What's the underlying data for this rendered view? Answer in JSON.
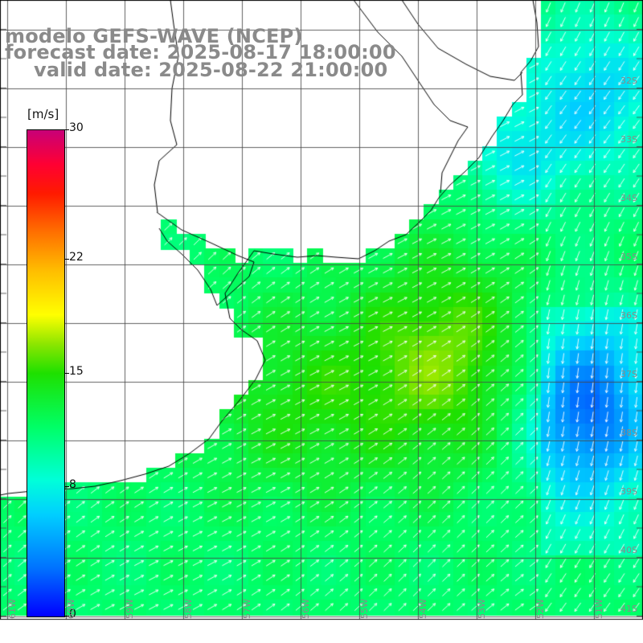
{
  "title": {
    "line1": "modelo GEFS-WAVE (NCEP)",
    "line2": "forecast date: 2025-08-17 18:00:00",
    "line3": "valid date: 2025-08-22 21:00:00"
  },
  "legend": {
    "units": "[m/s]",
    "ticks": [
      {
        "label": "30",
        "value": 30
      },
      {
        "label": "22",
        "value": 22
      },
      {
        "label": "15",
        "value": 15
      },
      {
        "label": "8",
        "value": 8
      },
      {
        "label": "0",
        "value": 0
      }
    ],
    "min": 0,
    "max": 30
  },
  "map": {
    "variable": "wind speed with direction arrows",
    "land_color": "#ffffff",
    "grid_color": "#555555",
    "arrow_color": "#ffffff",
    "lat_labels": [
      "32S",
      "33S",
      "34S",
      "35S",
      "36S",
      "37S",
      "38S",
      "39S",
      "40S",
      "41S"
    ],
    "lon_labels": [
      "61W",
      "60W",
      "59W",
      "58W",
      "57W",
      "56W",
      "55W",
      "54W",
      "53W",
      "52W",
      "51W"
    ]
  }
}
